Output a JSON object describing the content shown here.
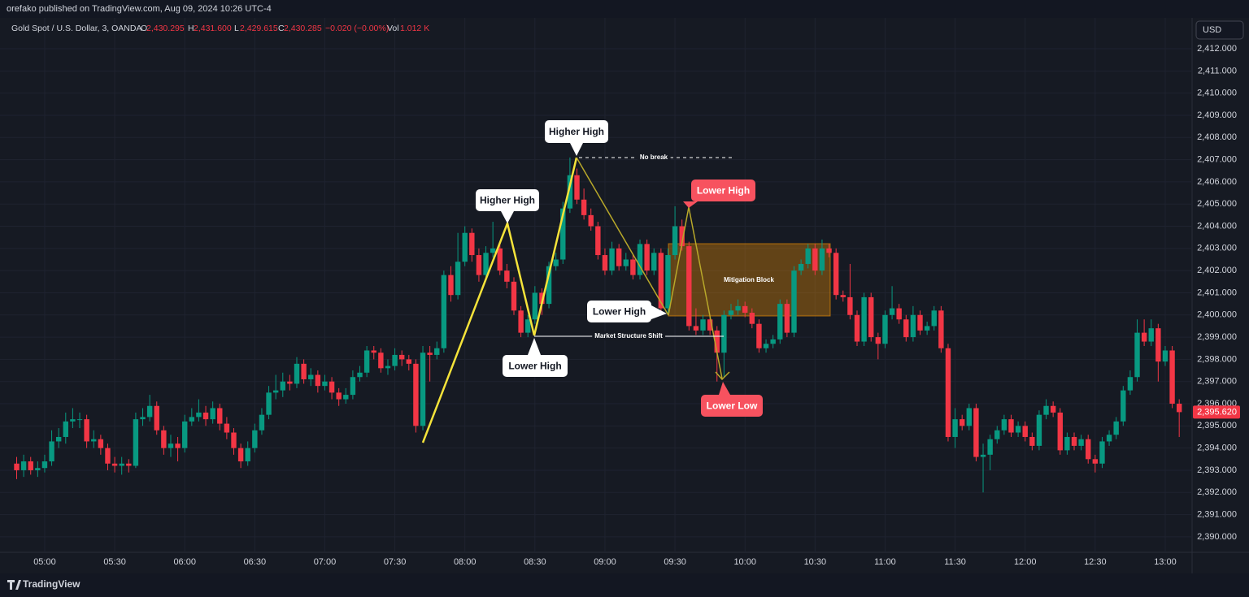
{
  "page": {
    "publisher": "orefako published on TradingView.com, Aug 09, 2024 10:26 UTC-4",
    "currency": "USD",
    "footer": "TradingView"
  },
  "chart_data": {
    "type": "candlestick",
    "title": "Gold Spot / U.S. Dollar, 3, OANDA",
    "legend": [
      {
        "key": "O",
        "value": "2,430.295"
      },
      {
        "key": "H",
        "value": "2,431.600"
      },
      {
        "key": "L",
        "value": "2,429.615"
      },
      {
        "key": "C",
        "value": "2,430.285"
      }
    ],
    "change": "−0.020 (−0.00%)",
    "volume": {
      "key": "Vol",
      "value": "1.012 K"
    },
    "up_color": "#089981",
    "down_color": "#f23645",
    "grid": true,
    "ylim": [
      2389.3,
      2413.1
    ],
    "yticks": [
      {
        "value": 2390,
        "label": "2,390.000"
      },
      {
        "value": 2391,
        "label": "2,391.000"
      },
      {
        "value": 2392,
        "label": "2,392.000"
      },
      {
        "value": 2393,
        "label": "2,393.000"
      },
      {
        "value": 2394,
        "label": "2,394.000"
      },
      {
        "value": 2395,
        "label": "2,395.000"
      },
      {
        "value": 2396,
        "label": "2,396.000"
      },
      {
        "value": 2397,
        "label": "2,397.000"
      },
      {
        "value": 2398,
        "label": "2,398.000"
      },
      {
        "value": 2399,
        "label": "2,399.000"
      },
      {
        "value": 2400,
        "label": "2,400.000"
      },
      {
        "value": 2401,
        "label": "2,401.000"
      },
      {
        "value": 2402,
        "label": "2,402.000"
      },
      {
        "value": 2403,
        "label": "2,403.000"
      },
      {
        "value": 2404,
        "label": "2,404.000"
      },
      {
        "value": 2405,
        "label": "2,405.000"
      },
      {
        "value": 2406,
        "label": "2,406.000"
      },
      {
        "value": 2407,
        "label": "2,407.000"
      },
      {
        "value": 2408,
        "label": "2,408.000"
      },
      {
        "value": 2409,
        "label": "2,409.000"
      },
      {
        "value": 2410,
        "label": "2,410.000"
      },
      {
        "value": 2411,
        "label": "2,411.000"
      },
      {
        "value": 2412,
        "label": "2,412.000"
      }
    ],
    "last_price": {
      "value": 2395.62,
      "label": "2,395.620"
    },
    "categories": [
      null,
      null,
      null,
      null,
      "05:00",
      null,
      null,
      null,
      null,
      null,
      null,
      null,
      null,
      null,
      "05:30",
      null,
      null,
      null,
      null,
      null,
      null,
      null,
      null,
      null,
      "06:00",
      null,
      null,
      null,
      null,
      null,
      null,
      null,
      null,
      null,
      "06:30",
      null,
      null,
      null,
      null,
      null,
      null,
      null,
      null,
      null,
      "07:00",
      null,
      null,
      null,
      null,
      null,
      null,
      null,
      null,
      null,
      "07:30",
      null,
      null,
      null,
      null,
      null,
      null,
      null,
      null,
      null,
      "08:00",
      null,
      null,
      null,
      null,
      null,
      null,
      null,
      null,
      null,
      "08:30",
      null,
      null,
      null,
      null,
      null,
      null,
      null,
      null,
      null,
      "09:00",
      null,
      null,
      null,
      null,
      null,
      null,
      null,
      null,
      null,
      "09:30",
      null,
      null,
      null,
      null,
      null,
      null,
      null,
      null,
      null,
      "10:00",
      null,
      null,
      null,
      null,
      null,
      null,
      null,
      null,
      null,
      "10:30",
      null,
      null,
      null,
      null,
      null,
      null,
      null,
      null,
      null,
      "11:00",
      null,
      null,
      null,
      null,
      null,
      null,
      null,
      null,
      null,
      "11:30",
      null,
      null,
      null,
      null,
      null,
      null,
      null,
      null,
      null,
      "12:00",
      null,
      null,
      null,
      null,
      null,
      null,
      null,
      null,
      null,
      "12:30",
      null,
      null,
      null,
      null,
      null,
      null,
      null,
      null,
      null,
      "13:00",
      null,
      null
    ],
    "ohlc": [
      [
        2393.3,
        2393.6,
        2392.6,
        2393.0
      ],
      [
        2393.0,
        2393.7,
        2392.7,
        2393.4
      ],
      [
        2393.4,
        2393.6,
        2392.8,
        2393.0
      ],
      [
        2393.0,
        2393.4,
        2392.7,
        2393.1
      ],
      [
        2393.1,
        2393.7,
        2392.9,
        2393.4
      ],
      [
        2393.4,
        2394.8,
        2393.2,
        2394.3
      ],
      [
        2394.3,
        2394.9,
        2394.0,
        2394.5
      ],
      [
        2394.5,
        2395.6,
        2394.2,
        2395.2
      ],
      [
        2395.2,
        2395.8,
        2394.9,
        2395.3
      ],
      [
        2395.3,
        2395.6,
        2394.9,
        2395.3
      ],
      [
        2395.3,
        2395.5,
        2394.0,
        2394.3
      ],
      [
        2394.3,
        2394.8,
        2394.0,
        2394.4
      ],
      [
        2394.4,
        2394.6,
        2393.7,
        2394.0
      ],
      [
        2394.0,
        2394.2,
        2393.0,
        2393.3
      ],
      [
        2393.3,
        2393.6,
        2392.9,
        2393.2
      ],
      [
        2393.2,
        2393.6,
        2392.8,
        2393.3
      ],
      [
        2393.3,
        2393.5,
        2392.9,
        2393.2
      ],
      [
        2393.2,
        2395.6,
        2393.1,
        2395.3
      ],
      [
        2395.3,
        2395.8,
        2395.0,
        2395.4
      ],
      [
        2395.4,
        2396.4,
        2395.2,
        2395.9
      ],
      [
        2395.9,
        2396.1,
        2394.6,
        2394.8
      ],
      [
        2394.8,
        2395.0,
        2393.7,
        2394.0
      ],
      [
        2394.0,
        2394.6,
        2393.6,
        2394.2
      ],
      [
        2394.2,
        2394.5,
        2393.4,
        2394.0
      ],
      [
        2394.0,
        2395.5,
        2393.8,
        2395.2
      ],
      [
        2395.2,
        2395.8,
        2395.0,
        2395.4
      ],
      [
        2395.4,
        2396.2,
        2395.2,
        2395.6
      ],
      [
        2395.6,
        2395.9,
        2395.0,
        2395.3
      ],
      [
        2395.3,
        2396.1,
        2395.1,
        2395.8
      ],
      [
        2395.8,
        2396.0,
        2394.8,
        2395.1
      ],
      [
        2395.1,
        2395.4,
        2394.4,
        2394.7
      ],
      [
        2394.7,
        2394.9,
        2393.7,
        2394.0
      ],
      [
        2394.0,
        2394.2,
        2393.1,
        2393.4
      ],
      [
        2393.4,
        2394.3,
        2393.2,
        2394.0
      ],
      [
        2394.0,
        2395.1,
        2393.8,
        2394.8
      ],
      [
        2394.8,
        2395.8,
        2394.6,
        2395.5
      ],
      [
        2395.5,
        2396.8,
        2395.3,
        2396.5
      ],
      [
        2396.5,
        2397.3,
        2396.2,
        2396.6
      ],
      [
        2396.6,
        2397.4,
        2396.3,
        2397.0
      ],
      [
        2397.0,
        2397.3,
        2396.6,
        2396.9
      ],
      [
        2396.9,
        2398.1,
        2396.7,
        2397.8
      ],
      [
        2397.8,
        2398.0,
        2396.9,
        2397.1
      ],
      [
        2397.1,
        2397.6,
        2396.8,
        2397.3
      ],
      [
        2397.3,
        2397.5,
        2396.5,
        2396.8
      ],
      [
        2396.8,
        2397.3,
        2396.6,
        2397.0
      ],
      [
        2397.0,
        2397.2,
        2396.2,
        2396.5
      ],
      [
        2396.5,
        2396.7,
        2395.9,
        2396.2
      ],
      [
        2396.2,
        2396.7,
        2396.0,
        2396.4
      ],
      [
        2396.4,
        2397.5,
        2396.2,
        2397.2
      ],
      [
        2397.2,
        2397.7,
        2397.0,
        2397.4
      ],
      [
        2397.4,
        2398.6,
        2397.2,
        2398.4
      ],
      [
        2398.4,
        2398.6,
        2398.0,
        2398.3
      ],
      [
        2398.3,
        2398.5,
        2397.4,
        2397.6
      ],
      [
        2397.6,
        2398.0,
        2397.3,
        2397.7
      ],
      [
        2397.7,
        2398.5,
        2397.5,
        2398.2
      ],
      [
        2398.2,
        2398.4,
        2397.7,
        2398.0
      ],
      [
        2398.0,
        2398.2,
        2397.5,
        2397.8
      ],
      [
        2397.8,
        2398.0,
        2394.7,
        2395.0
      ],
      [
        2395.0,
        2398.6,
        2394.8,
        2398.3
      ],
      [
        2398.3,
        2398.6,
        2397.0,
        2398.2
      ],
      [
        2398.2,
        2398.8,
        2398.0,
        2398.5
      ],
      [
        2398.5,
        2402.0,
        2398.3,
        2401.8
      ],
      [
        2401.8,
        2402.2,
        2400.6,
        2400.9
      ],
      [
        2400.9,
        2403.7,
        2400.7,
        2402.4
      ],
      [
        2402.4,
        2404.0,
        2402.2,
        2403.7
      ],
      [
        2403.7,
        2403.9,
        2402.4,
        2402.7
      ],
      [
        2402.7,
        2403.0,
        2401.5,
        2401.8
      ],
      [
        2401.8,
        2403.1,
        2401.6,
        2402.8
      ],
      [
        2402.8,
        2404.2,
        2402.6,
        2403.0
      ],
      [
        2403.0,
        2403.3,
        2401.8,
        2402.0
      ],
      [
        2402.0,
        2402.3,
        2401.2,
        2401.5
      ],
      [
        2401.5,
        2401.7,
        2400.0,
        2400.2
      ],
      [
        2400.2,
        2400.4,
        2399.0,
        2399.2
      ],
      [
        2399.2,
        2400.0,
        2399.0,
        2399.8
      ],
      [
        2399.8,
        2401.3,
        2399.6,
        2401.0
      ],
      [
        2401.0,
        2401.2,
        2400.0,
        2400.5
      ],
      [
        2400.5,
        2402.4,
        2400.3,
        2402.2
      ],
      [
        2402.2,
        2402.8,
        2402.0,
        2402.5
      ],
      [
        2402.5,
        2405.1,
        2402.3,
        2404.8
      ],
      [
        2404.8,
        2407.1,
        2404.6,
        2406.3
      ],
      [
        2406.3,
        2406.6,
        2405.0,
        2405.2
      ],
      [
        2405.2,
        2405.7,
        2404.3,
        2404.5
      ],
      [
        2404.5,
        2404.8,
        2403.8,
        2404.0
      ],
      [
        2404.0,
        2404.2,
        2402.5,
        2402.7
      ],
      [
        2402.7,
        2403.0,
        2401.8,
        2402.0
      ],
      [
        2402.0,
        2403.3,
        2401.8,
        2403.0
      ],
      [
        2403.0,
        2403.2,
        2402.0,
        2402.2
      ],
      [
        2402.2,
        2402.8,
        2402.0,
        2402.5
      ],
      [
        2402.5,
        2402.7,
        2401.6,
        2401.8
      ],
      [
        2401.8,
        2403.4,
        2401.6,
        2403.2
      ],
      [
        2403.2,
        2403.4,
        2401.8,
        2402.0
      ],
      [
        2402.0,
        2403.0,
        2401.8,
        2402.8
      ],
      [
        2402.8,
        2403.0,
        2400.1,
        2400.3
      ],
      [
        2400.3,
        2403.0,
        2400.1,
        2402.7
      ],
      [
        2402.7,
        2404.9,
        2402.5,
        2404.0
      ],
      [
        2404.0,
        2404.3,
        2402.9,
        2403.1
      ],
      [
        2403.1,
        2403.3,
        2399.3,
        2399.5
      ],
      [
        2399.5,
        2400.3,
        2399.1,
        2399.3
      ],
      [
        2399.3,
        2400.0,
        2399.1,
        2399.8
      ],
      [
        2399.8,
        2400.0,
        2399.1,
        2399.3
      ],
      [
        2399.3,
        2399.5,
        2397.0,
        2398.3
      ],
      [
        2398.3,
        2400.2,
        2397.2,
        2400.0
      ],
      [
        2400.0,
        2400.5,
        2399.8,
        2400.2
      ],
      [
        2400.2,
        2400.7,
        2400.0,
        2400.4
      ],
      [
        2400.4,
        2400.6,
        2399.9,
        2400.1
      ],
      [
        2400.1,
        2400.3,
        2399.4,
        2399.6
      ],
      [
        2399.6,
        2399.8,
        2398.3,
        2398.5
      ],
      [
        2398.5,
        2398.9,
        2398.3,
        2398.7
      ],
      [
        2398.7,
        2399.1,
        2398.5,
        2398.9
      ],
      [
        2398.9,
        2400.7,
        2398.7,
        2400.5
      ],
      [
        2400.5,
        2400.7,
        2399.0,
        2399.2
      ],
      [
        2399.2,
        2402.2,
        2399.0,
        2402.0
      ],
      [
        2402.0,
        2402.5,
        2401.8,
        2402.3
      ],
      [
        2402.3,
        2403.2,
        2402.1,
        2403.0
      ],
      [
        2403.0,
        2403.2,
        2401.8,
        2402.0
      ],
      [
        2402.0,
        2403.4,
        2401.8,
        2403.0
      ],
      [
        2403.0,
        2403.2,
        2402.6,
        2402.8
      ],
      [
        2402.8,
        2403.0,
        2400.7,
        2400.9
      ],
      [
        2400.9,
        2401.1,
        2400.6,
        2400.8
      ],
      [
        2400.8,
        2402.3,
        2399.8,
        2400.0
      ],
      [
        2400.0,
        2400.2,
        2398.6,
        2398.8
      ],
      [
        2398.8,
        2401.0,
        2398.6,
        2400.8
      ],
      [
        2400.8,
        2401.0,
        2398.8,
        2399.0
      ],
      [
        2399.0,
        2399.2,
        2398.0,
        2398.7
      ],
      [
        2398.7,
        2400.2,
        2398.5,
        2400.0
      ],
      [
        2400.0,
        2401.3,
        2399.8,
        2400.3
      ],
      [
        2400.3,
        2400.5,
        2399.6,
        2399.8
      ],
      [
        2399.8,
        2400.0,
        2398.8,
        2399.0
      ],
      [
        2399.0,
        2400.4,
        2398.8,
        2400.0
      ],
      [
        2400.0,
        2400.2,
        2399.1,
        2399.3
      ],
      [
        2399.3,
        2399.7,
        2399.1,
        2399.5
      ],
      [
        2399.5,
        2400.4,
        2399.3,
        2400.2
      ],
      [
        2400.2,
        2400.4,
        2398.3,
        2398.5
      ],
      [
        2398.5,
        2398.7,
        2394.3,
        2394.5
      ],
      [
        2394.5,
        2395.8,
        2394.0,
        2395.3
      ],
      [
        2395.3,
        2395.5,
        2394.8,
        2395.0
      ],
      [
        2395.0,
        2396.0,
        2394.8,
        2395.8
      ],
      [
        2395.8,
        2396.0,
        2393.4,
        2393.6
      ],
      [
        2393.6,
        2394.2,
        2392.0,
        2393.7
      ],
      [
        2393.7,
        2394.6,
        2393.0,
        2394.4
      ],
      [
        2394.4,
        2395.0,
        2394.2,
        2394.8
      ],
      [
        2394.8,
        2395.5,
        2394.6,
        2395.3
      ],
      [
        2395.3,
        2395.5,
        2394.5,
        2394.7
      ],
      [
        2394.7,
        2395.2,
        2394.5,
        2395.0
      ],
      [
        2395.0,
        2395.2,
        2394.3,
        2394.5
      ],
      [
        2394.5,
        2394.7,
        2393.9,
        2394.1
      ],
      [
        2394.1,
        2395.7,
        2393.9,
        2395.5
      ],
      [
        2395.5,
        2396.2,
        2395.3,
        2395.9
      ],
      [
        2395.9,
        2396.1,
        2395.4,
        2395.6
      ],
      [
        2395.6,
        2395.8,
        2393.7,
        2393.9
      ],
      [
        2393.9,
        2394.7,
        2393.7,
        2394.5
      ],
      [
        2394.5,
        2394.7,
        2393.9,
        2394.1
      ],
      [
        2394.1,
        2394.6,
        2393.9,
        2394.4
      ],
      [
        2394.4,
        2394.6,
        2393.3,
        2393.5
      ],
      [
        2393.5,
        2393.7,
        2392.9,
        2393.3
      ],
      [
        2393.3,
        2394.5,
        2393.1,
        2394.3
      ],
      [
        2394.3,
        2394.8,
        2394.1,
        2394.6
      ],
      [
        2394.6,
        2395.4,
        2394.4,
        2395.2
      ],
      [
        2395.2,
        2396.8,
        2395.0,
        2396.6
      ],
      [
        2396.6,
        2397.5,
        2396.4,
        2397.2
      ],
      [
        2397.2,
        2399.8,
        2397.0,
        2399.2
      ],
      [
        2399.2,
        2399.8,
        2398.6,
        2398.8
      ],
      [
        2398.8,
        2399.8,
        2398.6,
        2399.4
      ],
      [
        2399.4,
        2399.6,
        2397.0,
        2397.9
      ],
      [
        2397.9,
        2398.6,
        2397.7,
        2398.4
      ],
      [
        2398.4,
        2398.6,
        2395.8,
        2396.0
      ],
      [
        2396.0,
        2396.2,
        2394.5,
        2395.62
      ]
    ],
    "annotations": [
      "Higher High",
      "Higher High",
      "Lower High",
      "Lower High",
      "Lower High",
      "Lower Low",
      "No break",
      "Market Structure Shift",
      "Mitigation Block"
    ]
  }
}
